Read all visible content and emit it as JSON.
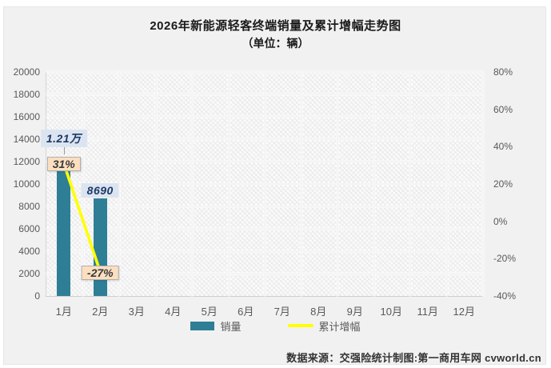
{
  "header": {
    "title": "2026年新能源轻客终端销量及累计增幅走势图",
    "subtitle": "（单位：辆）"
  },
  "legend": {
    "items": [
      {
        "label": "销量",
        "type": "bar"
      },
      {
        "label": "累计增幅",
        "type": "line"
      }
    ]
  },
  "footer": {
    "source": "数据来源：交强险统计制图:第一商用车网 cvworld.cn"
  },
  "colors": {
    "bar": "#2e7f96",
    "line": "#ffff00",
    "sales_label_bg": "#dbe5f1",
    "sales_label_text": "#1f3864",
    "growth_label_bg": "#fcdfc0",
    "growth_label_border": "#b0b0b0",
    "growth_label_text": "#3a3a3a",
    "axis_text": "#595959",
    "gridline": "#ffffff"
  },
  "chart_data": {
    "type": "bar+line",
    "categories": [
      "1月",
      "2月",
      "3月",
      "4月",
      "5月",
      "6月",
      "7月",
      "8月",
      "9月",
      "10月",
      "11月",
      "12月"
    ],
    "series": [
      {
        "name": "销量",
        "type": "bar",
        "axis": "left",
        "values": [
          12100,
          8690,
          null,
          null,
          null,
          null,
          null,
          null,
          null,
          null,
          null,
          null
        ],
        "data_labels": [
          "1.21万",
          "8690",
          null,
          null,
          null,
          null,
          null,
          null,
          null,
          null,
          null,
          null
        ]
      },
      {
        "name": "累计增幅",
        "type": "line",
        "axis": "right",
        "values": [
          31,
          -27,
          null,
          null,
          null,
          null,
          null,
          null,
          null,
          null,
          null,
          null
        ],
        "data_labels": [
          "31%",
          "-27%",
          null,
          null,
          null,
          null,
          null,
          null,
          null,
          null,
          null,
          null
        ]
      }
    ],
    "left_axis": {
      "min": 0,
      "max": 20000,
      "step": 2000,
      "tick_labels": [
        "20000",
        "18000",
        "16000",
        "14000",
        "12000",
        "10000",
        "8000",
        "6000",
        "4000",
        "2000",
        "0"
      ]
    },
    "right_axis": {
      "min": -40,
      "max": 80,
      "step": 20,
      "tick_labels": [
        "80%",
        "60%",
        "40%",
        "20%",
        "0%",
        "-20%",
        "-40%"
      ]
    },
    "grid": true,
    "legend_position": "bottom"
  }
}
